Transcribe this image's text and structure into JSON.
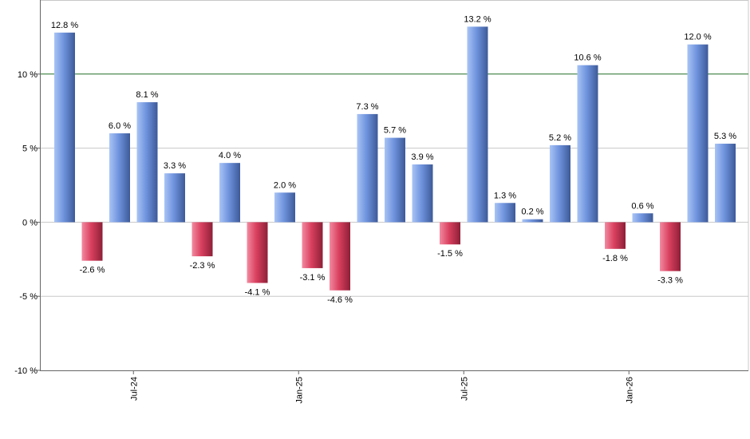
{
  "colors": {
    "positive_light": "#a9c4f5",
    "positive_mid": "#6f93dd",
    "positive_dark": "#3d5a99",
    "negative_light": "#f28aa0",
    "negative_mid": "#d9405f",
    "negative_dark": "#8e1f37",
    "gridline": "#c8c8c8",
    "reference_line": "#2e7d32",
    "axis": "#666666"
  },
  "chart_data": {
    "type": "bar",
    "title": "",
    "xlabel": "",
    "ylabel": "",
    "ylim": [
      -10,
      15
    ],
    "yticks": [
      -10,
      -5,
      0,
      5,
      10
    ],
    "ytick_labels": [
      "-10 %",
      "-5 %",
      "0 %",
      "5 %",
      "10 %"
    ],
    "grid": true,
    "reference_line": 10,
    "values": [
      12.8,
      -2.6,
      6.0,
      8.1,
      3.3,
      -2.3,
      4.0,
      -4.1,
      2.0,
      -3.1,
      -4.6,
      7.3,
      5.7,
      3.9,
      -1.5,
      13.2,
      1.3,
      0.2,
      5.2,
      10.6,
      -1.8,
      0.6,
      -3.3,
      12.0,
      5.3
    ],
    "value_labels": [
      "12.8 %",
      "-2.6 %",
      "6.0 %",
      "8.1 %",
      "3.3 %",
      "-2.3 %",
      "4.0 %",
      "-4.1 %",
      "2.0 %",
      "-3.1 %",
      "-4.6 %",
      "7.3 %",
      "5.7 %",
      "3.9 %",
      "-1.5 %",
      "13.2 %",
      "1.3 %",
      "0.2 %",
      "5.2 %",
      "10.6 %",
      "-1.8 %",
      "0.6 %",
      "-3.3 %",
      "12.0 %",
      "5.3 %"
    ],
    "xticks": [
      {
        "label": "Jul-24",
        "bar_index": 2.5
      },
      {
        "label": "Jan-25",
        "bar_index": 8.5
      },
      {
        "label": "Jul-25",
        "bar_index": 14.5
      },
      {
        "label": "Jan-26",
        "bar_index": 20.5
      }
    ]
  }
}
